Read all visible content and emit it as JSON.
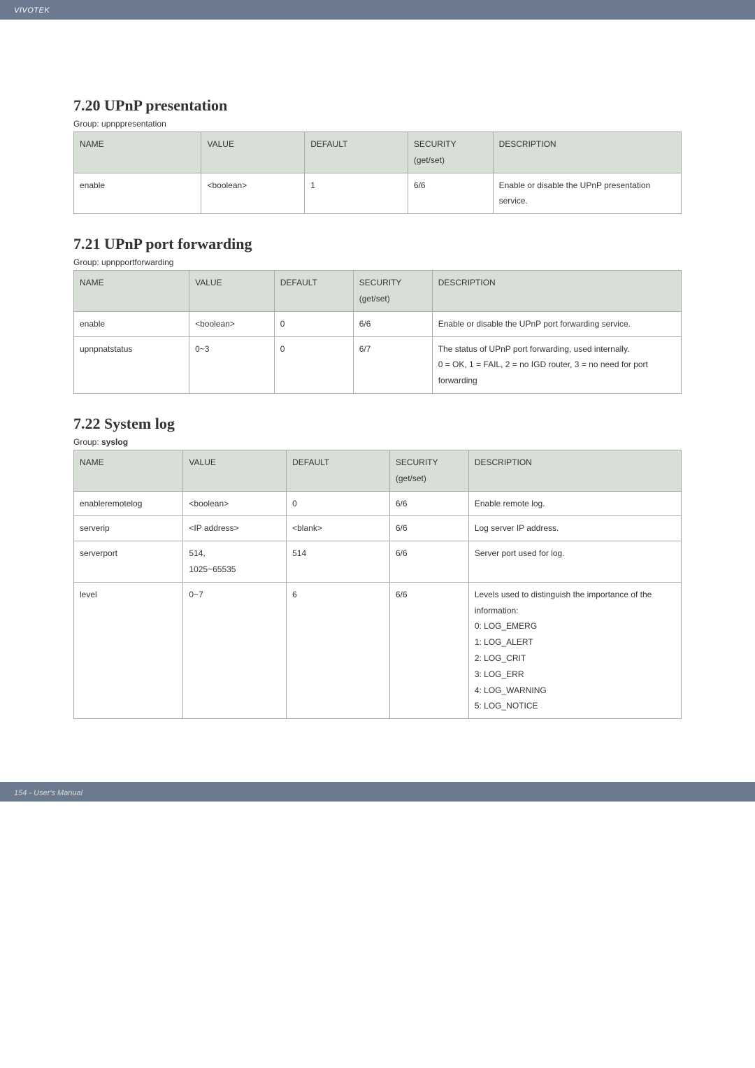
{
  "header": {
    "brand": "VIVOTEK"
  },
  "footer": {
    "page": "154 - User's Manual"
  },
  "sections": {
    "upnp_presentation": {
      "heading": "7.20 UPnP presentation",
      "group_prefix": "Group: ",
      "group_name": "upnppresentation",
      "group_bold": false,
      "cols": {
        "name": "NAME",
        "value": "VALUE",
        "default": "DEFAULT",
        "security": "SECURITY (get/set)",
        "description": "DESCRIPTION"
      },
      "rows": [
        {
          "name": "enable",
          "value": "<boolean>",
          "default": "1",
          "security": "6/6",
          "description": "Enable or disable the UPnP presentation service."
        }
      ],
      "widths": [
        "21%",
        "17%",
        "17%",
        "14%",
        "31%"
      ]
    },
    "upnp_portforwarding": {
      "heading": "7.21 UPnP port forwarding",
      "group_prefix": "Group: ",
      "group_name": "upnpportforwarding",
      "group_bold": false,
      "cols": {
        "name": "NAME",
        "value": "VALUE",
        "default": "DEFAULT",
        "security": "SECURITY (get/set)",
        "description": "DESCRIPTION"
      },
      "rows": [
        {
          "name": "enable",
          "value": "<boolean>",
          "default": "0",
          "security": "6/6",
          "description": "Enable or disable the UPnP port forwarding service."
        },
        {
          "name": "upnpnatstatus",
          "value": "0~3",
          "default": "0",
          "security": "6/7",
          "description": "The status of UPnP port forwarding, used internally.\n0 = OK, 1 = FAIL, 2 = no IGD router, 3 = no need for port forwarding"
        }
      ],
      "widths": [
        "19%",
        "14%",
        "13%",
        "13%",
        "41%"
      ]
    },
    "syslog": {
      "heading": "7.22 System log",
      "group_prefix": "Group: ",
      "group_name": "syslog",
      "group_bold": true,
      "cols": {
        "name": "NAME",
        "value": "VALUE",
        "default": "DEFAULT",
        "security": "SECURITY (get/set)",
        "description": "DESCRIPTION"
      },
      "rows": [
        {
          "name": "enableremotelog",
          "value": "<boolean>",
          "default": "0",
          "security": "6/6",
          "description": "Enable remote log."
        },
        {
          "name": "serverip",
          "value": "<IP address>",
          "default": "<blank>",
          "security": "6/6",
          "description": "Log server IP address."
        },
        {
          "name": "serverport",
          "value": "514,\n1025~65535",
          "default": "514",
          "security": "6/6",
          "description": "Server port used for log."
        },
        {
          "name": "level",
          "value": "0~7",
          "default": "6",
          "security": "6/6",
          "description": "Levels used to distinguish the importance of the information:\n0: LOG_EMERG\n1: LOG_ALERT\n2: LOG_CRIT\n3: LOG_ERR\n4: LOG_WARNING\n5: LOG_NOTICE"
        }
      ],
      "widths": [
        "18%",
        "17%",
        "17%",
        "13%",
        "35%"
      ]
    }
  }
}
